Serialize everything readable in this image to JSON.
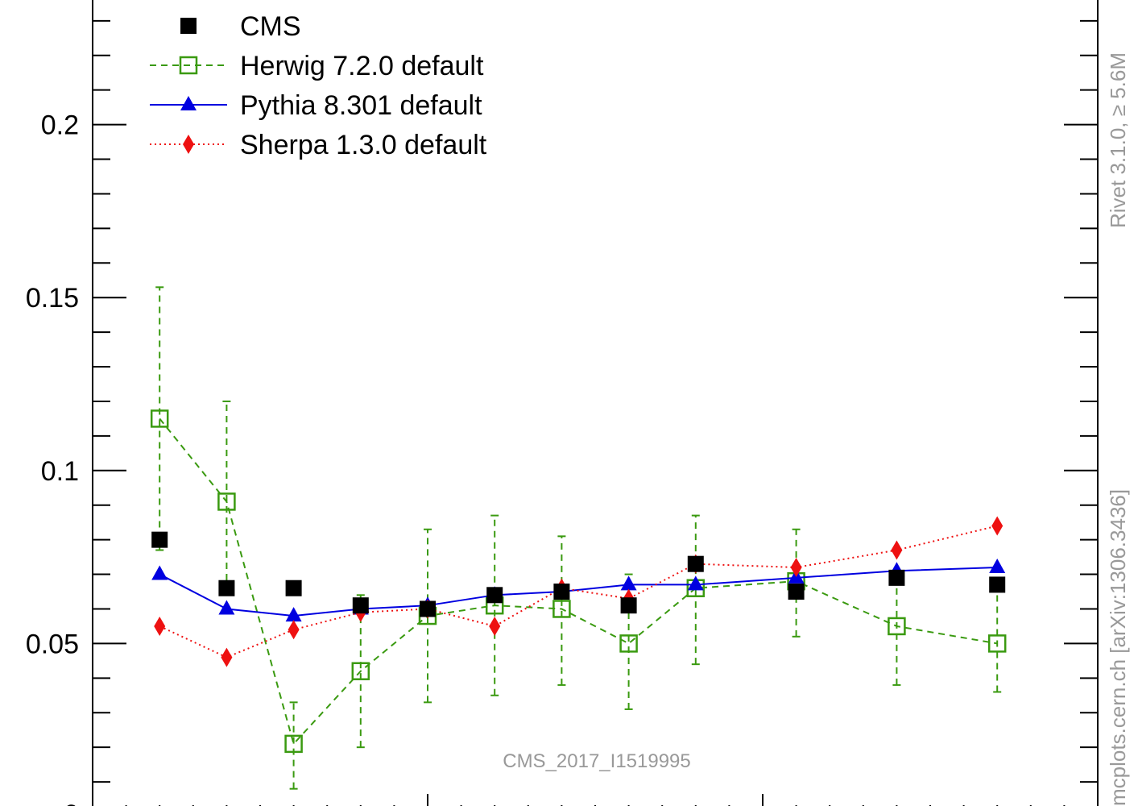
{
  "chart_data": {
    "type": "line",
    "title": "",
    "xlabel": "",
    "ylabel": "",
    "ylim": [
      0.0,
      0.236
    ],
    "yticks": [
      {
        "value": 0.05,
        "label": "0.05"
      },
      {
        "value": 0.1,
        "label": "0.1"
      },
      {
        "value": 0.15,
        "label": "0.15"
      },
      {
        "value": 0.2,
        "label": "0.2"
      }
    ],
    "y_bottom_partial_label": "0",
    "x": [
      1,
      2,
      3,
      4,
      5,
      6,
      7,
      8,
      9,
      10.5,
      12,
      13.5
    ],
    "xlim": [
      0,
      15
    ],
    "x_major_ticks": [
      5,
      10,
      15
    ],
    "legend_position": "top-left",
    "series": [
      {
        "name": "CMS",
        "color": "#000000",
        "marker": "filled-square",
        "line": "none",
        "values": [
          0.08,
          0.066,
          0.066,
          0.061,
          0.06,
          0.064,
          0.065,
          0.061,
          0.073,
          0.065,
          0.069,
          0.067
        ]
      },
      {
        "name": "Herwig 7.2.0 default",
        "color": "#3a9a10",
        "marker": "open-square",
        "line": "dashed",
        "values": [
          0.115,
          0.091,
          0.021,
          0.042,
          0.058,
          0.061,
          0.06,
          0.05,
          0.066,
          0.068,
          0.055,
          0.05
        ],
        "err_low": [
          0.077,
          0.065,
          0.008,
          0.02,
          0.033,
          0.035,
          0.038,
          0.031,
          0.044,
          0.052,
          0.038,
          0.036
        ],
        "err_high": [
          0.153,
          0.12,
          0.033,
          0.064,
          0.083,
          0.087,
          0.081,
          0.07,
          0.087,
          0.083,
          0.07,
          0.066
        ]
      },
      {
        "name": "Pythia 8.301 default",
        "color": "#0000e0",
        "marker": "filled-triangle",
        "line": "solid",
        "values": [
          0.07,
          0.06,
          0.058,
          0.06,
          0.061,
          0.064,
          0.065,
          0.067,
          0.067,
          0.069,
          0.071,
          0.072
        ]
      },
      {
        "name": "Sherpa 1.3.0 default",
        "color": "#ee1111",
        "marker": "filled-diamond",
        "line": "dotted",
        "values": [
          0.055,
          0.046,
          0.054,
          0.059,
          0.06,
          0.055,
          0.066,
          0.063,
          0.073,
          0.072,
          0.077,
          0.084
        ]
      }
    ],
    "annotations": {
      "analysis_id": "CMS_2017_I1519995",
      "side_label_top": "Rivet 3.1.0, ≥ 5.6M",
      "side_label_bottom": "mcplots.cern.ch [arXiv:1306.3436]"
    }
  }
}
